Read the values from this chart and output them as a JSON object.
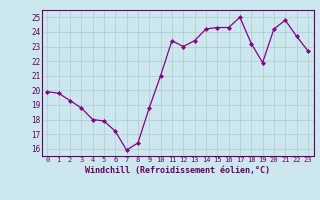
{
  "x": [
    0,
    1,
    2,
    3,
    4,
    5,
    6,
    7,
    8,
    9,
    10,
    11,
    12,
    13,
    14,
    15,
    16,
    17,
    18,
    19,
    20,
    21,
    22,
    23
  ],
  "y": [
    19.9,
    19.8,
    19.3,
    18.8,
    18.0,
    17.9,
    17.2,
    15.9,
    16.4,
    18.8,
    21.0,
    23.4,
    23.0,
    23.4,
    24.2,
    24.3,
    24.3,
    25.0,
    23.2,
    21.9,
    24.2,
    24.8,
    23.7,
    22.7
  ],
  "line_color": "#880088",
  "marker": "D",
  "marker_size": 2.0,
  "bg_color": "#cce8ee",
  "grid_color": "#aacccc",
  "xlabel": "Windchill (Refroidissement éolien,°C)",
  "ylabel_ticks": [
    16,
    17,
    18,
    19,
    20,
    21,
    22,
    23,
    24,
    25
  ],
  "xlim": [
    -0.5,
    23.5
  ],
  "ylim": [
    15.5,
    25.5
  ],
  "xticks": [
    0,
    1,
    2,
    3,
    4,
    5,
    6,
    7,
    8,
    9,
    10,
    11,
    12,
    13,
    14,
    15,
    16,
    17,
    18,
    19,
    20,
    21,
    22,
    23
  ],
  "label_color": "#660066",
  "tick_color": "#660066",
  "spine_color": "#660066"
}
